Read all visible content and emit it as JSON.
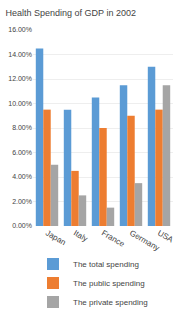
{
  "chart_data": {
    "type": "bar",
    "title": "Health Spending of GDP in 2002",
    "categories": [
      "Japan",
      "Italy",
      "France",
      "Germany",
      "USA"
    ],
    "series": [
      {
        "name": "The total spending",
        "color": "#5B9BD5",
        "values": [
          14.5,
          9.5,
          10.5,
          11.5,
          13.0
        ]
      },
      {
        "name": "The public spending",
        "color": "#ED7D31",
        "values": [
          9.5,
          4.5,
          8.0,
          9.0,
          9.5
        ]
      },
      {
        "name": "The private spending",
        "color": "#A5A5A5",
        "values": [
          5.0,
          2.5,
          1.5,
          3.5,
          11.5
        ]
      }
    ],
    "ylim": [
      0,
      16
    ],
    "yticks": [
      {
        "value": 0,
        "label": "0.00%"
      },
      {
        "value": 2,
        "label": "2.00%"
      },
      {
        "value": 4,
        "label": "4.00%"
      },
      {
        "value": 6,
        "label": "6.00%"
      },
      {
        "value": 8,
        "label": "8.00%"
      },
      {
        "value": 10,
        "label": "10.00%"
      },
      {
        "value": 12,
        "label": "12.00%"
      },
      {
        "value": 14,
        "label": "14.00%"
      },
      {
        "value": 16,
        "label": "16.00%"
      }
    ],
    "grid": true,
    "legend": "bottom"
  }
}
